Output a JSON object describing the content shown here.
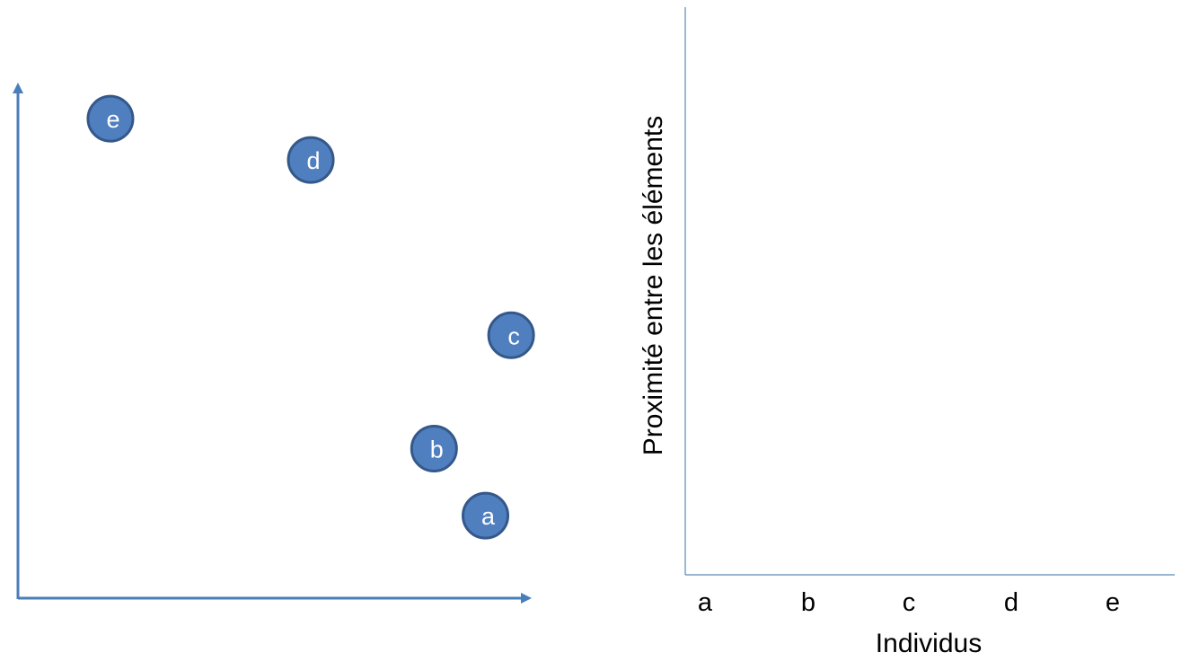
{
  "scatter": {
    "points": [
      {
        "label": "e",
        "x": 0.18,
        "y": 0.93
      },
      {
        "label": "d",
        "x": 0.57,
        "y": 0.85
      },
      {
        "label": "c",
        "x": 0.96,
        "y": 0.51
      },
      {
        "label": "b",
        "x": 0.81,
        "y": 0.29
      },
      {
        "label": "a",
        "x": 0.91,
        "y": 0.16
      }
    ]
  },
  "dendrogram": {
    "y_axis_title": "Proximité entre les éléments",
    "x_axis_title": "Individus",
    "leaves": [
      "a",
      "b",
      "c",
      "d",
      "e"
    ]
  },
  "colors": {
    "point_fill": "#4f7fbf",
    "point_stroke": "#35588a",
    "arrow_axis": "#4a7ebb",
    "thin_axis": "#5b8ab5"
  }
}
